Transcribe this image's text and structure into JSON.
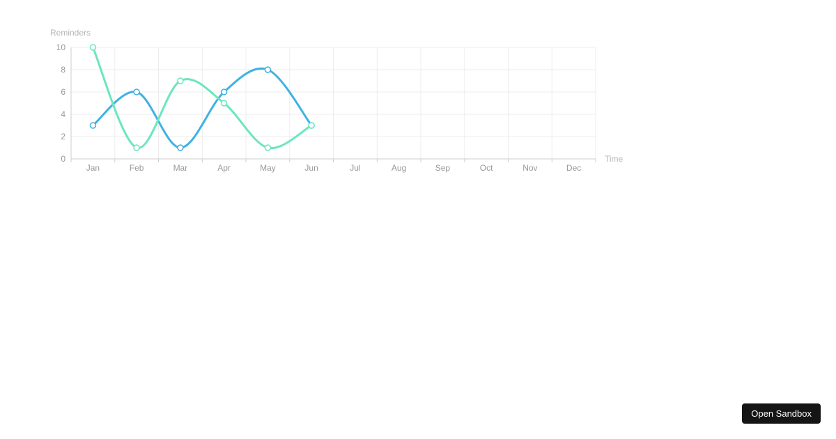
{
  "chart_data": {
    "type": "line",
    "title": "",
    "categories": [
      "Jan",
      "Feb",
      "Mar",
      "Apr",
      "May",
      "Jun",
      "Jul",
      "Aug",
      "Sep",
      "Oct",
      "Nov",
      "Dec"
    ],
    "series": [
      {
        "name": "blue",
        "color": "#3fb1e3",
        "values": [
          3,
          6,
          1,
          6,
          8,
          3
        ]
      },
      {
        "name": "green",
        "color": "#6be6c1",
        "values": [
          10,
          1,
          7,
          5,
          1,
          3
        ]
      }
    ],
    "xlabel": "Time",
    "ylabel": "Reminders",
    "yticks": [
      0,
      2,
      4,
      6,
      8,
      10
    ],
    "ylim": [
      0,
      10
    ],
    "grid": true,
    "smooth": true,
    "marker": "empty-circle",
    "legend_position": "none"
  },
  "styles": {
    "axis_line_color": "#cccccc",
    "grid_line_color": "#ececec",
    "tick_label_color": "#999999",
    "axis_name_color": "#b6b6b6",
    "marker_fill": "#ffffff",
    "page_background": "#ffffff"
  },
  "sandbox_button": {
    "label": "Open Sandbox",
    "background": "#151515",
    "text_color": "#ffffff"
  }
}
